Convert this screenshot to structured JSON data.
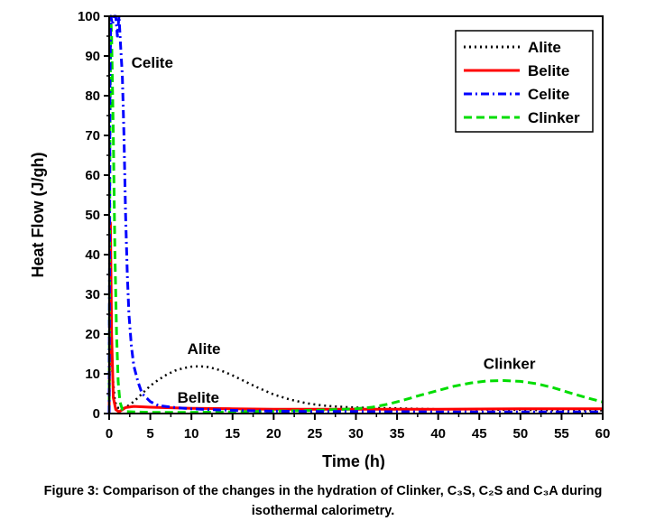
{
  "chart_data": {
    "type": "line",
    "xlabel": "Time (h)",
    "ylabel": "Heat Flow (J/gh)",
    "xlim": [
      0,
      60
    ],
    "ylim": [
      0,
      100
    ],
    "xticks": [
      "0",
      "5",
      "10",
      "15",
      "20",
      "25",
      "30",
      "35",
      "40",
      "45",
      "50",
      "55",
      "60"
    ],
    "yticks": [
      "0",
      "10",
      "20",
      "30",
      "40",
      "50",
      "60",
      "70",
      "80",
      "90",
      "100"
    ],
    "legend_position": "top-right",
    "grid": false,
    "series": [
      {
        "name": "Alite",
        "color": "#000000",
        "dash": "dotted",
        "x": [
          0,
          0.2,
          0.4,
          0.7,
          1.0,
          1.5,
          2,
          3,
          4,
          5,
          6,
          7,
          8,
          9,
          10,
          11,
          12,
          13,
          14,
          15,
          16,
          17,
          18,
          20,
          22,
          24,
          26,
          28,
          30,
          32,
          35,
          40,
          45,
          50,
          55,
          60
        ],
        "y": [
          0,
          30,
          10,
          3,
          1.5,
          1.2,
          1.5,
          3,
          5,
          7,
          8.5,
          9.8,
          10.8,
          11.4,
          11.8,
          11.9,
          11.7,
          11.2,
          10.5,
          9.6,
          8.6,
          7.6,
          6.6,
          4.8,
          3.5,
          2.6,
          2.0,
          1.7,
          1.5,
          1.4,
          1.3,
          1.1,
          1.0,
          0.9,
          0.8,
          0.8
        ]
      },
      {
        "name": "Belite",
        "color": "#ff0000",
        "dash": "solid",
        "x": [
          0,
          0.15,
          0.3,
          0.5,
          0.8,
          1.2,
          2,
          3,
          5,
          10,
          15,
          20,
          30,
          40,
          50,
          60
        ],
        "y": [
          0,
          48,
          20,
          4,
          1,
          0.4,
          1.5,
          1.8,
          1.6,
          1.3,
          1.2,
          1.1,
          1.1,
          1.1,
          1.2,
          1.2
        ]
      },
      {
        "name": "Celite",
        "color": "#0000ff",
        "dash": "dashdot",
        "x": [
          0,
          0.1,
          0.2,
          0.4,
          0.6,
          0.8,
          1.0,
          1.2,
          1.4,
          1.6,
          1.8,
          2.0,
          2.2,
          2.4,
          2.7,
          3.0,
          3.5,
          4.0,
          5,
          6,
          8,
          10,
          12,
          15,
          20,
          25,
          30,
          40,
          50,
          60
        ],
        "y": [
          0,
          85,
          100,
          98,
          100,
          100,
          95,
          100,
          92,
          85,
          70,
          50,
          35,
          25,
          17,
          12,
          8,
          5,
          3,
          2,
          1.5,
          1.2,
          1,
          0.8,
          0.6,
          0.5,
          0.5,
          0.4,
          0.4,
          0.4
        ]
      },
      {
        "name": "Clinker",
        "color": "#00dd00",
        "dash": "dashed",
        "x": [
          0,
          0.1,
          0.2,
          0.3,
          0.5,
          0.7,
          0.9,
          1.1,
          1.3,
          1.6,
          2.0,
          3,
          5,
          10,
          15,
          20,
          25,
          30,
          32,
          34,
          36,
          38,
          40,
          42,
          44,
          46,
          48,
          50,
          52,
          54,
          56,
          58,
          60
        ],
        "y": [
          0,
          70,
          100,
          95,
          70,
          40,
          20,
          8,
          3,
          1,
          0.5,
          0.4,
          0.3,
          0.3,
          0.4,
          0.6,
          0.8,
          1.2,
          1.6,
          2.4,
          3.5,
          4.7,
          5.8,
          6.9,
          7.7,
          8.2,
          8.3,
          8.1,
          7.5,
          6.5,
          5.2,
          4.0,
          2.9
        ]
      }
    ],
    "annotations": [
      {
        "text": "Celite",
        "x": 2.7,
        "y": 87
      },
      {
        "text": "Alite",
        "x": 9.5,
        "y": 15
      },
      {
        "text": "Belite",
        "x": 8.3,
        "y": 2.7
      },
      {
        "text": "Clinker",
        "x": 45.5,
        "y": 11.2
      }
    ]
  },
  "caption": {
    "line1": "Figure 3: Comparison of the changes in the hydration of Clinker, C₃S, C₂S and C₃A during",
    "line2": "isothermal calorimetry."
  }
}
